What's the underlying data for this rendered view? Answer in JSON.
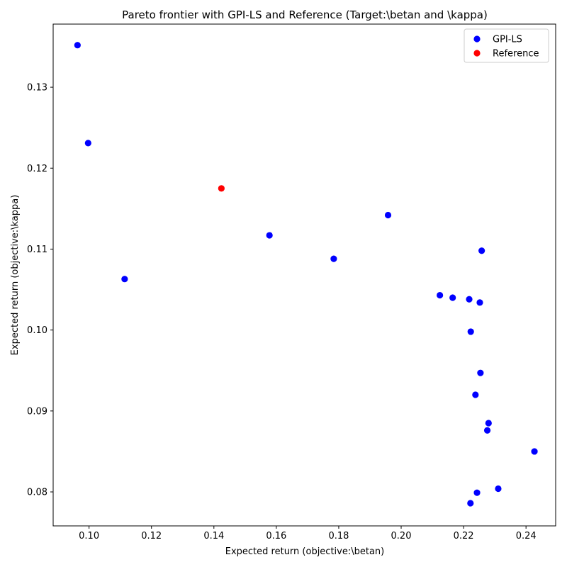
{
  "chart_data": {
    "type": "scatter",
    "title": "Pareto frontier with GPI-LS and Reference (Target:\\betan and \\kappa)",
    "xlabel": "Expected return (objective:\\betan)",
    "ylabel": "Expected return (objective:\\kappa)",
    "xlim": [
      0.0885,
      0.2495
    ],
    "ylim": [
      0.0758,
      0.1378
    ],
    "xticks": [
      0.1,
      0.12,
      0.14,
      0.16,
      0.18,
      0.2,
      0.22,
      0.24
    ],
    "xtick_labels": [
      "0.10",
      "0.12",
      "0.14",
      "0.16",
      "0.18",
      "0.20",
      "0.22",
      "0.24"
    ],
    "yticks": [
      0.08,
      0.09,
      0.1,
      0.11,
      0.12,
      0.13
    ],
    "ytick_labels": [
      "0.08",
      "0.09",
      "0.10",
      "0.11",
      "0.12",
      "0.13"
    ],
    "grid": false,
    "legend_position": "top-right",
    "series": [
      {
        "name": "GPI-LS",
        "color": "#0000ff",
        "points": [
          [
            0.0963,
            0.1352
          ],
          [
            0.0997,
            0.1231
          ],
          [
            0.1114,
            0.1063
          ],
          [
            0.1578,
            0.1117
          ],
          [
            0.1784,
            0.1088
          ],
          [
            0.1958,
            0.1142
          ],
          [
            0.2124,
            0.1043
          ],
          [
            0.2165,
            0.104
          ],
          [
            0.2218,
            0.1038
          ],
          [
            0.2252,
            0.1034
          ],
          [
            0.2258,
            0.1098
          ],
          [
            0.2223,
            0.0998
          ],
          [
            0.2254,
            0.0947
          ],
          [
            0.2238,
            0.092
          ],
          [
            0.228,
            0.0885
          ],
          [
            0.2276,
            0.0876
          ],
          [
            0.2427,
            0.085
          ],
          [
            0.2311,
            0.0804
          ],
          [
            0.2243,
            0.0799
          ],
          [
            0.2222,
            0.0786
          ]
        ]
      },
      {
        "name": "Reference",
        "color": "#ff0000",
        "points": [
          [
            0.1424,
            0.1175
          ]
        ]
      }
    ]
  }
}
